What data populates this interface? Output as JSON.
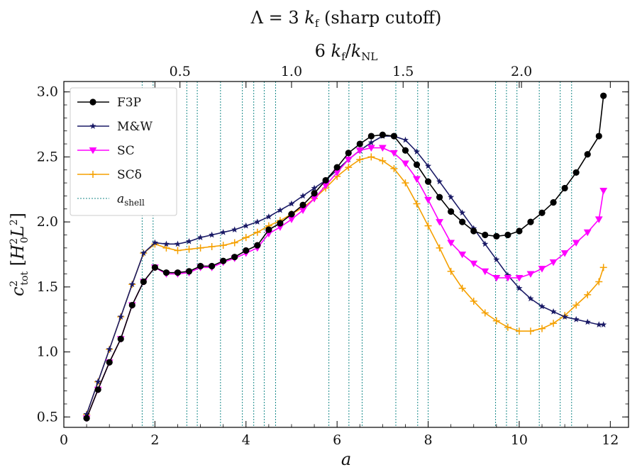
{
  "chart_data": {
    "type": "line",
    "title": "Λ = 3 k_f (sharp cutoff)",
    "xlabel": "a",
    "ylabel": "c²_tot [H₀² L²]",
    "top_xlabel": "6 k_f/k_NL",
    "xlim": [
      0,
      12.4
    ],
    "ylim": [
      0.42,
      3.08
    ],
    "xticks": [
      0,
      2,
      4,
      6,
      8,
      10,
      12
    ],
    "yticks": [
      0.5,
      1.0,
      1.5,
      2.0,
      2.5,
      3.0
    ],
    "xtick_labels": [
      "0",
      "2",
      "4",
      "6",
      "8",
      "10",
      "12"
    ],
    "ytick_labels": [
      "0.5",
      "1.0",
      "1.5",
      "2.0",
      "2.5",
      "3.0"
    ],
    "top_ticks": [
      {
        "label": "0.5",
        "a": 2.55
      },
      {
        "label": "1.0",
        "a": 5.0
      },
      {
        "label": "1.5",
        "a": 7.45
      },
      {
        "label": "2.0",
        "a": 10.05
      }
    ],
    "shell_lines": [
      1.72,
      1.96,
      2.7,
      2.93,
      3.44,
      3.92,
      4.17,
      4.4,
      4.65,
      5.82,
      6.26,
      6.55,
      7.29,
      7.77,
      8.0,
      9.48,
      9.72,
      9.95,
      10.44,
      10.9,
      11.15
    ],
    "legend_position": "upper left",
    "series": [
      {
        "name": "F3P",
        "color": "#000000",
        "marker": "circle",
        "x": [
          0.5,
          0.75,
          1.0,
          1.25,
          1.5,
          1.75,
          2.0,
          2.25,
          2.5,
          2.75,
          3.0,
          3.25,
          3.5,
          3.75,
          4.0,
          4.25,
          4.5,
          4.75,
          5.0,
          5.25,
          5.5,
          5.75,
          6.0,
          6.25,
          6.5,
          6.75,
          7.0,
          7.25,
          7.5,
          7.75,
          8.0,
          8.25,
          8.5,
          8.75,
          9.0,
          9.25,
          9.5,
          9.75,
          10.0,
          10.25,
          10.5,
          10.75,
          11.0,
          11.25,
          11.5,
          11.75
        ],
        "y": [
          0.49,
          0.71,
          0.92,
          1.1,
          1.36,
          1.54,
          1.65,
          1.61,
          1.61,
          1.62,
          1.66,
          1.66,
          1.7,
          1.73,
          1.78,
          1.82,
          1.94,
          1.99,
          2.06,
          2.13,
          2.22,
          2.32,
          2.42,
          2.53,
          2.6,
          2.66,
          2.67,
          2.66,
          2.55,
          2.44,
          2.31,
          2.19,
          2.08,
          2.0,
          1.93,
          1.9,
          1.89,
          1.9,
          1.93,
          2.0,
          2.07,
          2.15,
          2.26,
          2.38,
          2.52,
          2.66
        ]
      },
      {
        "name": "M&W",
        "color": "#1a1a66",
        "marker": "star",
        "x": [
          0.5,
          0.75,
          1.0,
          1.25,
          1.5,
          1.75,
          2.0,
          2.25,
          2.5,
          2.75,
          3.0,
          3.25,
          3.5,
          3.75,
          4.0,
          4.25,
          4.5,
          4.75,
          5.0,
          5.25,
          5.5,
          5.75,
          6.0,
          6.25,
          6.5,
          6.75,
          7.0,
          7.25,
          7.5,
          7.75,
          8.0,
          8.25,
          8.5,
          8.75,
          9.0,
          9.25,
          9.5,
          9.75,
          10.0,
          10.25,
          10.5,
          10.75,
          11.0,
          11.25,
          11.5,
          11.75
        ],
        "y": [
          0.52,
          0.77,
          1.02,
          1.27,
          1.52,
          1.76,
          1.84,
          1.83,
          1.83,
          1.85,
          1.88,
          1.9,
          1.92,
          1.94,
          1.97,
          2.0,
          2.04,
          2.09,
          2.14,
          2.2,
          2.26,
          2.32,
          2.4,
          2.48,
          2.55,
          2.61,
          2.66,
          2.66,
          2.63,
          2.54,
          2.43,
          2.31,
          2.19,
          2.07,
          1.95,
          1.83,
          1.71,
          1.59,
          1.49,
          1.41,
          1.35,
          1.31,
          1.27,
          1.25,
          1.23,
          1.21
        ]
      },
      {
        "name": "SC",
        "color": "#ff00ff",
        "marker": "triangle-down",
        "x": [
          0.5,
          0.75,
          1.0,
          1.25,
          1.5,
          1.75,
          2.0,
          2.25,
          2.5,
          2.75,
          3.0,
          3.25,
          3.5,
          3.75,
          4.0,
          4.25,
          4.5,
          4.75,
          5.0,
          5.25,
          5.5,
          5.75,
          6.0,
          6.25,
          6.5,
          6.75,
          7.0,
          7.25,
          7.5,
          7.75,
          8.0,
          8.25,
          8.5,
          8.75,
          9.0,
          9.25,
          9.5,
          9.75,
          10.0,
          10.25,
          10.5,
          10.75,
          11.0,
          11.25,
          11.5,
          11.75
        ],
        "y": [
          0.49,
          0.71,
          0.92,
          1.1,
          1.36,
          1.54,
          1.65,
          1.6,
          1.6,
          1.61,
          1.65,
          1.65,
          1.69,
          1.72,
          1.76,
          1.8,
          1.91,
          1.96,
          2.02,
          2.09,
          2.18,
          2.28,
          2.38,
          2.48,
          2.55,
          2.57,
          2.57,
          2.53,
          2.45,
          2.33,
          2.17,
          2.0,
          1.84,
          1.75,
          1.68,
          1.62,
          1.57,
          1.57,
          1.57,
          1.6,
          1.64,
          1.69,
          1.76,
          1.84,
          1.92,
          2.02
        ]
      },
      {
        "name": "SCδ",
        "color": "#f5a000",
        "marker": "plus",
        "x": [
          0.5,
          0.75,
          1.0,
          1.25,
          1.5,
          1.75,
          2.0,
          2.25,
          2.5,
          2.75,
          3.0,
          3.25,
          3.5,
          3.75,
          4.0,
          4.25,
          4.5,
          4.75,
          5.0,
          5.25,
          5.5,
          5.75,
          6.0,
          6.25,
          6.5,
          6.75,
          7.0,
          7.25,
          7.5,
          7.75,
          8.0,
          8.25,
          8.5,
          8.75,
          9.0,
          9.25,
          9.5,
          9.75,
          10.0,
          10.25,
          10.5,
          10.75,
          11.0,
          11.25,
          11.5,
          11.75
        ],
        "y": [
          0.52,
          0.77,
          1.02,
          1.27,
          1.52,
          1.76,
          1.83,
          1.8,
          1.78,
          1.79,
          1.8,
          1.81,
          1.82,
          1.84,
          1.88,
          1.92,
          1.97,
          2.01,
          2.06,
          2.11,
          2.18,
          2.26,
          2.35,
          2.42,
          2.48,
          2.5,
          2.47,
          2.41,
          2.3,
          2.14,
          1.97,
          1.8,
          1.62,
          1.49,
          1.39,
          1.3,
          1.24,
          1.19,
          1.16,
          1.16,
          1.18,
          1.22,
          1.28,
          1.36,
          1.44,
          1.54
        ]
      }
    ],
    "series_extra": [
      {
        "name": "F3P",
        "x": [
          11.85
        ],
        "y": [
          2.97
        ]
      },
      {
        "name": "M&W",
        "x": [
          11.85
        ],
        "y": [
          1.21
        ]
      },
      {
        "name": "SC",
        "x": [
          11.85
        ],
        "y": [
          2.24
        ]
      },
      {
        "name": "SCδ",
        "x": [
          11.85
        ],
        "y": [
          1.65
        ]
      }
    ],
    "shell_legend_label": "a_shell",
    "shell_color": "#1a8a8a"
  }
}
